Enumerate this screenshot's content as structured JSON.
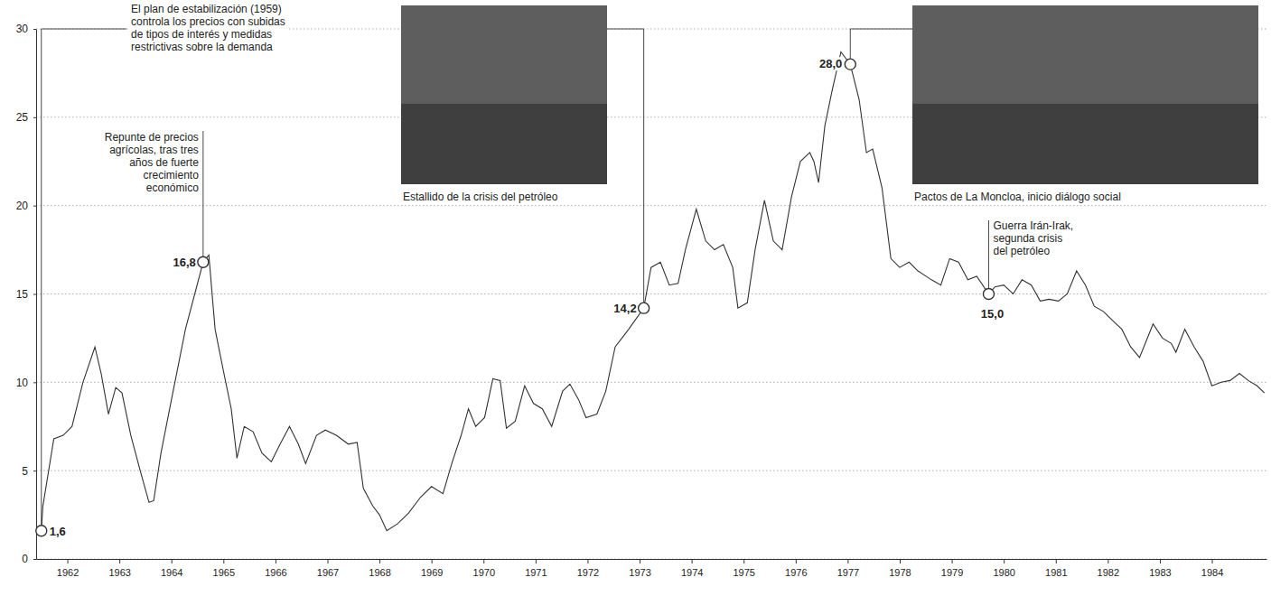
{
  "chart_data": {
    "type": "line",
    "color": "#333333",
    "grid": true,
    "xlim": [
      1961.9,
      1985.55
    ],
    "ylim": [
      0,
      30
    ],
    "yticks": [
      0,
      5,
      10,
      15,
      20,
      25,
      30
    ],
    "xticks": [
      {
        "value": 1962.5,
        "label": "1962"
      },
      {
        "value": 1963.5,
        "label": "1963"
      },
      {
        "value": 1964.5,
        "label": "1964"
      },
      {
        "value": 1965.5,
        "label": "1965"
      },
      {
        "value": 1966.5,
        "label": "1966"
      },
      {
        "value": 1967.5,
        "label": "1967"
      },
      {
        "value": 1968.5,
        "label": "1968"
      },
      {
        "value": 1969.5,
        "label": "1969"
      },
      {
        "value": 1970.5,
        "label": "1970"
      },
      {
        "value": 1971.5,
        "label": "1971"
      },
      {
        "value": 1972.5,
        "label": "1972"
      },
      {
        "value": 1973.5,
        "label": "1973"
      },
      {
        "value": 1974.5,
        "label": "1974"
      },
      {
        "value": 1975.5,
        "label": "1975"
      },
      {
        "value": 1976.5,
        "label": "1976"
      },
      {
        "value": 1977.5,
        "label": "1977"
      },
      {
        "value": 1978.5,
        "label": "1978"
      },
      {
        "value": 1979.5,
        "label": "1979"
      },
      {
        "value": 1980.5,
        "label": "1980"
      },
      {
        "value": 1981.5,
        "label": "1981"
      },
      {
        "value": 1982.5,
        "label": "1982"
      },
      {
        "value": 1983.5,
        "label": "1983"
      },
      {
        "value": 1984.5,
        "label": "1984"
      }
    ],
    "x": [
      1962.0,
      1962.03,
      1962.24,
      1962.42,
      1962.59,
      1962.8,
      1963.03,
      1963.15,
      1963.29,
      1963.43,
      1963.55,
      1963.72,
      1963.9,
      1964.07,
      1964.16,
      1964.3,
      1964.5,
      1964.77,
      1965.11,
      1965.22,
      1965.34,
      1965.51,
      1965.65,
      1965.76,
      1965.9,
      1966.07,
      1966.24,
      1966.42,
      1966.59,
      1966.77,
      1966.94,
      1967.08,
      1967.29,
      1967.46,
      1967.67,
      1967.9,
      1968.07,
      1968.19,
      1968.37,
      1968.5,
      1968.64,
      1968.85,
      1969.06,
      1969.29,
      1969.5,
      1969.72,
      1969.9,
      1970.07,
      1970.21,
      1970.35,
      1970.52,
      1970.68,
      1970.82,
      1970.94,
      1971.11,
      1971.29,
      1971.46,
      1971.63,
      1971.81,
      1972.02,
      1972.16,
      1972.33,
      1972.47,
      1972.68,
      1972.85,
      1973.03,
      1973.29,
      1973.58,
      1973.72,
      1973.9,
      1974.07,
      1974.24,
      1974.38,
      1974.59,
      1974.77,
      1974.94,
      1975.11,
      1975.29,
      1975.39,
      1975.57,
      1975.72,
      1975.9,
      1976.07,
      1976.24,
      1976.42,
      1976.59,
      1976.77,
      1976.85,
      1976.94,
      1977.06,
      1977.2,
      1977.37,
      1977.55,
      1977.72,
      1977.86,
      1977.98,
      1978.16,
      1978.33,
      1978.5,
      1978.68,
      1978.85,
      1979.11,
      1979.29,
      1979.46,
      1979.63,
      1979.81,
      1979.98,
      1980.21,
      1980.33,
      1980.5,
      1980.68,
      1980.85,
      1981.03,
      1981.2,
      1981.37,
      1981.55,
      1981.72,
      1981.9,
      1982.07,
      1982.24,
      1982.42,
      1982.59,
      1982.77,
      1982.94,
      1983.11,
      1983.37,
      1983.55,
      1983.72,
      1983.81,
      1983.98,
      1984.16,
      1984.33,
      1984.5,
      1984.68,
      1984.85,
      1985.03,
      1985.2,
      1985.37,
      1985.51
    ],
    "values": [
      1.6,
      3.0,
      6.8,
      7.0,
      7.5,
      10.0,
      12.0,
      10.5,
      8.2,
      9.7,
      9.4,
      7.0,
      5.0,
      3.2,
      3.3,
      6.0,
      9.0,
      13.0,
      16.8,
      17.2,
      13.0,
      10.5,
      8.5,
      5.7,
      7.5,
      7.2,
      6.0,
      5.5,
      6.5,
      7.5,
      6.5,
      5.4,
      7.0,
      7.3,
      7.0,
      6.5,
      6.6,
      4.0,
      3.0,
      2.5,
      1.6,
      2.0,
      2.6,
      3.5,
      4.1,
      3.7,
      5.5,
      7.0,
      8.5,
      7.5,
      8.0,
      10.2,
      10.1,
      7.4,
      7.8,
      9.8,
      8.8,
      8.5,
      7.5,
      9.5,
      9.9,
      9.0,
      8.0,
      8.2,
      9.5,
      12.0,
      13.0,
      14.2,
      16.5,
      16.8,
      15.5,
      15.6,
      17.5,
      19.8,
      18.0,
      17.5,
      17.8,
      16.5,
      14.2,
      14.5,
      17.5,
      20.3,
      18.0,
      17.5,
      20.5,
      22.5,
      23.0,
      22.5,
      21.3,
      24.5,
      26.5,
      28.7,
      28.0,
      26.0,
      23.0,
      23.2,
      21.0,
      17.0,
      16.5,
      16.8,
      16.3,
      15.8,
      15.5,
      17.0,
      16.8,
      15.8,
      16.0,
      15.0,
      15.4,
      15.5,
      15.0,
      15.8,
      15.5,
      14.6,
      14.7,
      14.6,
      15.0,
      16.3,
      15.5,
      14.3,
      14.0,
      13.5,
      13.0,
      12.0,
      11.4,
      13.3,
      12.5,
      12.2,
      11.7,
      13.0,
      12.0,
      11.2,
      9.8,
      10.0,
      10.1,
      10.5,
      10.1,
      9.8,
      9.4
    ],
    "annotations": [
      {
        "x": 1962.0,
        "value": 1.6,
        "label": "1,6",
        "text": [
          "El plan de estabilización (1959)",
          "controla los precios con subidas",
          "de tipos de interés y medidas",
          "restrictivas sobre la demanda"
        ]
      },
      {
        "x": 1965.11,
        "value": 16.8,
        "label": "16,8",
        "text": [
          "Repunte de precios",
          "agrícolas, tras tres",
          "años de fuerte",
          "crecimiento",
          "económico"
        ]
      },
      {
        "x": 1973.58,
        "value": 14.2,
        "label": "14,2",
        "text": [
          "Estallido de la crisis del petróleo"
        ]
      },
      {
        "x": 1977.55,
        "value": 28.0,
        "label": "28,0",
        "text": [
          "Pactos de La Moncloa, inicio diálogo social"
        ]
      },
      {
        "x": 1980.21,
        "value": 15.0,
        "label": "15,0",
        "text": [
          "Guerra Irán-Irak,",
          "segunda crisis",
          "del petróleo"
        ]
      }
    ]
  }
}
